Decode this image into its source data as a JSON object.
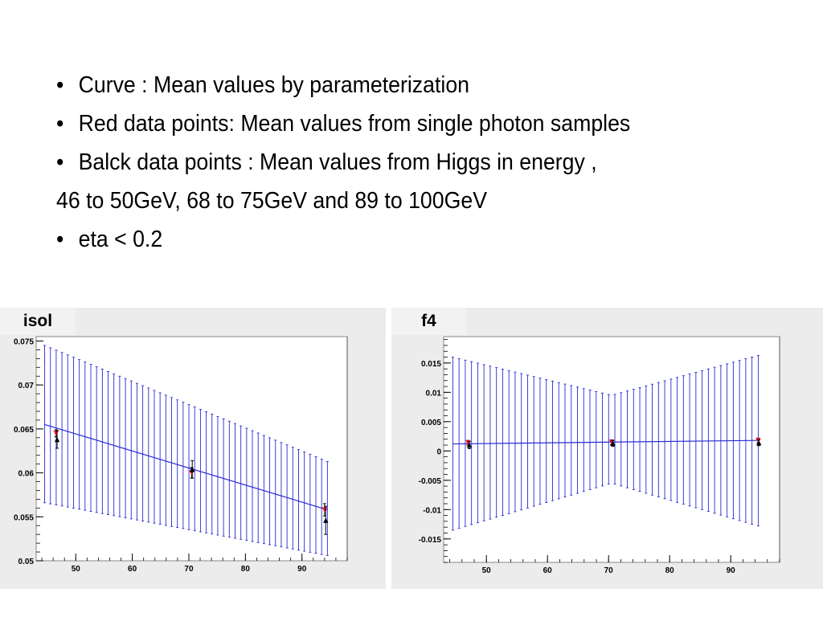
{
  "bullets": [
    {
      "marker": "•",
      "text": "Curve : Mean values by parameterization"
    },
    {
      "marker": "•",
      "text": "Red data points: Mean values from single photon samples"
    },
    {
      "marker": "•",
      "text": "Balck data points : Mean values from Higgs in energy ,"
    },
    {
      "marker": "",
      "text": "46 to 50GeV, 68 to 75GeV and 89 to 100GeV"
    },
    {
      "marker": "•",
      "text": "eta < 0.2"
    }
  ],
  "colors": {
    "curve": "#2a2ad6",
    "red_points": "#e8141e",
    "black_points": "#000000",
    "frame_bg": "#ececec",
    "plot_bg": "#ffffff"
  },
  "chart_data": [
    {
      "type": "line",
      "title": "isol",
      "xlim": [
        43,
        98
      ],
      "ylim": [
        0.05,
        0.0755
      ],
      "xticks": [
        50,
        60,
        70,
        80,
        90
      ],
      "yticks": [
        0.05,
        0.055,
        0.06,
        0.065,
        0.07,
        0.075
      ],
      "ytick_labels": [
        "0.05",
        "0.055",
        "0.06",
        "0.065",
        "0.07",
        "0.075"
      ],
      "curve": {
        "x": [
          44.5,
          94.5
        ],
        "y": [
          0.0655,
          0.0558
        ]
      },
      "band": {
        "x_start": 44.5,
        "x_end": 94.5,
        "n": 50,
        "upper": [
          0.0745,
          0.0613
        ],
        "lower": [
          0.0566,
          0.0506
        ]
      },
      "series": [
        {
          "name": "Red data points",
          "marker": "down-triangle",
          "color": "#e8141e",
          "x": [
            46.5,
            70.5,
            94.0
          ],
          "y": [
            0.0645,
            0.06,
            0.0558
          ],
          "err": [
            0.0004,
            0.0006,
            0.0007
          ]
        },
        {
          "name": "Black data points",
          "marker": "up-triangle",
          "color": "#000000",
          "x": [
            46.7,
            70.6,
            94.2
          ],
          "y": [
            0.0638,
            0.0604,
            0.0546
          ],
          "err": [
            0.001,
            0.001,
            0.0016
          ]
        }
      ]
    },
    {
      "type": "line",
      "title": "f4",
      "xlim": [
        43,
        98
      ],
      "ylim": [
        -0.019,
        0.0195
      ],
      "xticks": [
        50,
        60,
        70,
        80,
        90
      ],
      "yticks": [
        -0.015,
        -0.01,
        -0.005,
        0,
        0.005,
        0.01,
        0.015
      ],
      "ytick_labels": [
        "-0.015",
        "-0.01",
        "-0.005",
        "0",
        "0.005",
        "0.01",
        "0.015"
      ],
      "curve": {
        "x": [
          44.5,
          94.5
        ],
        "y": [
          0.0012,
          0.0018
        ]
      },
      "band": {
        "x_start": 44.5,
        "x_end": 94.5,
        "n": 50,
        "vx": 70.5,
        "vmin": 0.0095,
        "upper_left": 0.016,
        "upper_right": 0.0163,
        "lower_left": -0.0135,
        "lower_right": -0.0128,
        "lower_v": -0.0055
      },
      "series": [
        {
          "name": "Red data points",
          "marker": "down-triangle",
          "color": "#e8141e",
          "x": [
            47.0,
            70.5,
            94.5
          ],
          "y": [
            0.0014,
            0.0015,
            0.0018
          ],
          "err": [
            0.0004,
            0.0004,
            0.0004
          ]
        },
        {
          "name": "Black data points",
          "marker": "up-triangle",
          "color": "#000000",
          "x": [
            47.2,
            70.7,
            94.6
          ],
          "y": [
            0.001,
            0.0013,
            0.0014
          ],
          "err": [
            0.0006,
            0.0005,
            0.0005
          ]
        }
      ]
    }
  ]
}
